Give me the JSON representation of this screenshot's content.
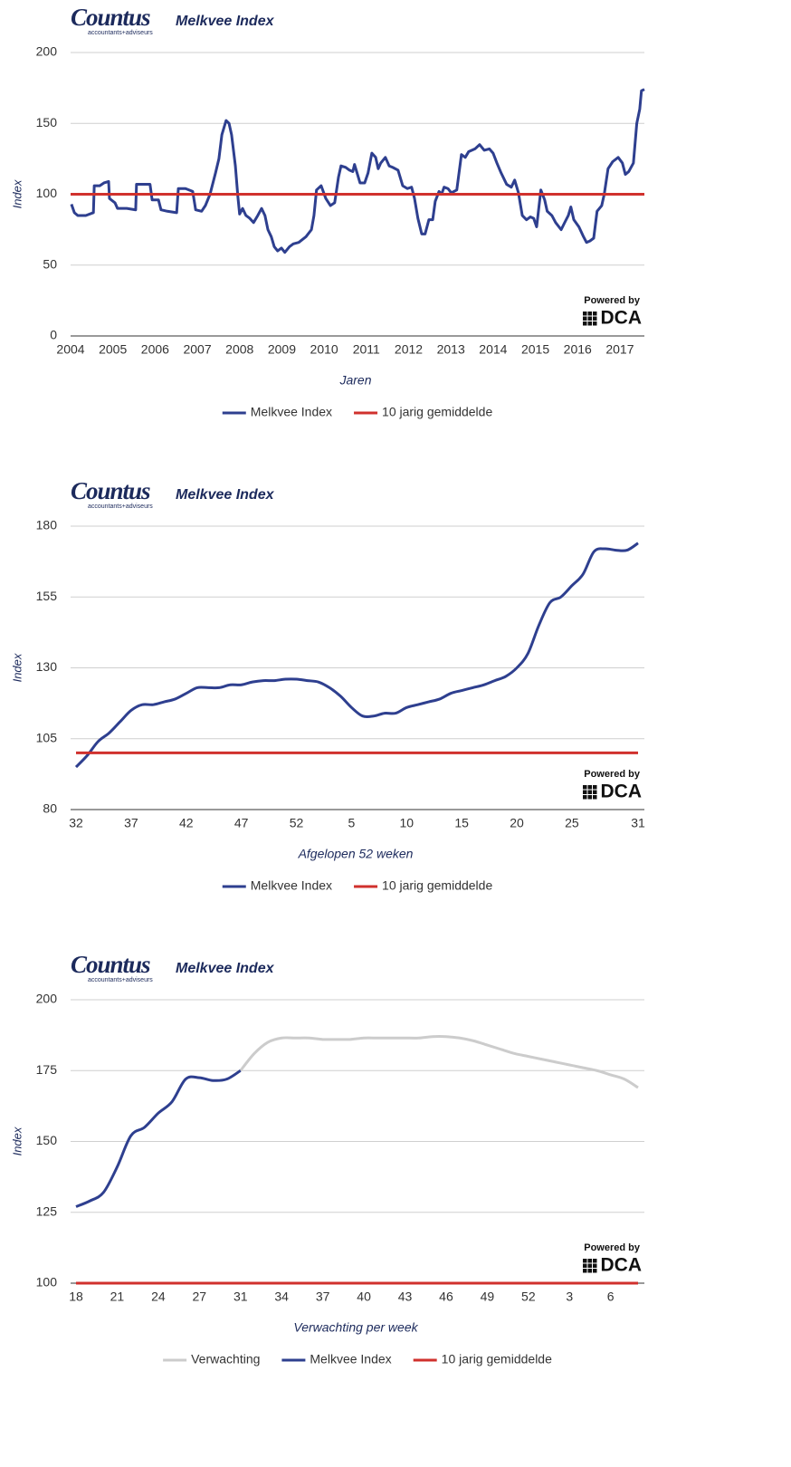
{
  "chart_data": [
    {
      "type": "line",
      "logo": "Countus",
      "logo_subtitle": "accountants+adviseurs",
      "title": "Melkvee Index",
      "badge_caption": "Powered by",
      "badge": "DCA",
      "xlabel": "Jaren",
      "ylabel": "Index",
      "xlim": [
        2004,
        2017.58
      ],
      "xticks": [
        2004,
        2005,
        2006,
        2007,
        2008,
        2009,
        2010,
        2011,
        2012,
        2013,
        2014,
        2015,
        2016,
        2017
      ],
      "ylim": [
        0,
        200
      ],
      "yticks": [
        0,
        50,
        100,
        150,
        200
      ],
      "grid": true,
      "smooth": false,
      "series": [
        {
          "name": "Melkvee Index",
          "color": "#2e3f8f",
          "x": [
            2004.02,
            2004.09,
            2004.17,
            2004.36,
            2004.54,
            2004.56,
            2004.69,
            2004.79,
            2004.9,
            2004.92,
            2005.05,
            2005.11,
            2005.33,
            2005.54,
            2005.56,
            2005.71,
            2005.88,
            2005.93,
            2006.08,
            2006.14,
            2006.29,
            2006.51,
            2006.55,
            2006.72,
            2006.89,
            2006.96,
            2007.1,
            2007.19,
            2007.3,
            2007.43,
            2007.51,
            2007.58,
            2007.68,
            2007.75,
            2007.81,
            2007.9,
            2007.96,
            2008,
            2008.07,
            2008.15,
            2008.24,
            2008.33,
            2008.43,
            2008.52,
            2008.6,
            2008.67,
            2008.75,
            2008.82,
            2008.9,
            2008.99,
            2009.07,
            2009.18,
            2009.27,
            2009.4,
            2009.57,
            2009.7,
            2009.76,
            2009.82,
            2009.93,
            2010.04,
            2010.15,
            2010.25,
            2010.34,
            2010.4,
            2010.51,
            2010.6,
            2010.68,
            2010.72,
            2010.79,
            2010.85,
            2010.96,
            2011.04,
            2011.13,
            2011.22,
            2011.28,
            2011.34,
            2011.45,
            2011.54,
            2011.62,
            2011.75,
            2011.86,
            2011.97,
            2012.07,
            2012.14,
            2012.22,
            2012.31,
            2012.39,
            2012.48,
            2012.57,
            2012.63,
            2012.72,
            2012.78,
            2012.84,
            2012.93,
            2013.01,
            2013.14,
            2013.25,
            2013.34,
            2013.42,
            2013.57,
            2013.68,
            2013.79,
            2013.91,
            2014,
            2014.09,
            2014.19,
            2014.32,
            2014.43,
            2014.51,
            2014.6,
            2014.69,
            2014.79,
            2014.88,
            2014.96,
            2015.03,
            2015.13,
            2015.22,
            2015.28,
            2015.39,
            2015.48,
            2015.61,
            2015.71,
            2015.78,
            2015.84,
            2015.91,
            2016.03,
            2016.14,
            2016.21,
            2016.29,
            2016.38,
            2016.46,
            2016.57,
            2016.63,
            2016.72,
            2016.83,
            2016.96,
            2017.06,
            2017.13,
            2017.21,
            2017.32,
            2017.4,
            2017.47,
            2017.51,
            2017.58
          ],
          "values": [
            93,
            87,
            85,
            85,
            87,
            106,
            106,
            108,
            109,
            97,
            94,
            90,
            90,
            89,
            107,
            107,
            107,
            96,
            96,
            89,
            88,
            87,
            104,
            104,
            102,
            89,
            88,
            92,
            100,
            115,
            125,
            142,
            152,
            150,
            142,
            120,
            98,
            86,
            90,
            85,
            83,
            80,
            85,
            90,
            85,
            75,
            70,
            63,
            60,
            62,
            59,
            63,
            65,
            66,
            70,
            75,
            85,
            103,
            106,
            97,
            92,
            94,
            112,
            120,
            119,
            117,
            116,
            121,
            114,
            108,
            108,
            115,
            129,
            126,
            118,
            122,
            126,
            120,
            119,
            117,
            106,
            104,
            105,
            97,
            83,
            72,
            72,
            82,
            82,
            95,
            102,
            100,
            105,
            104,
            101,
            103,
            128,
            126,
            130,
            132,
            135,
            131,
            132,
            129,
            122,
            115,
            107,
            105,
            110,
            101,
            85,
            82,
            84,
            83,
            77,
            103,
            96,
            88,
            85,
            80,
            75,
            81,
            85,
            91,
            82,
            77,
            70,
            66,
            67,
            69,
            88,
            92,
            100,
            118,
            123,
            126,
            122,
            114,
            116,
            122,
            150,
            160,
            173,
            174
          ]
        },
        {
          "name": "10 jarig gemiddelde",
          "color": "#d0312d",
          "x": [
            2004,
            2017.58
          ],
          "values": [
            100,
            100
          ]
        }
      ]
    },
    {
      "type": "line",
      "logo": "Countus",
      "logo_subtitle": "accountants+adviseurs",
      "title": "Melkvee Index",
      "badge_caption": "Powered by",
      "badge": "DCA",
      "xlabel": "Afgelopen 52 weken",
      "ylabel": "Index",
      "categories": [
        "32",
        null,
        null,
        null,
        null,
        "37",
        null,
        null,
        null,
        null,
        "42",
        null,
        null,
        null,
        null,
        "47",
        null,
        null,
        null,
        null,
        "52",
        null,
        null,
        null,
        null,
        "5",
        null,
        null,
        null,
        null,
        "10",
        null,
        null,
        null,
        null,
        "15",
        null,
        null,
        null,
        null,
        "20",
        null,
        null,
        null,
        null,
        "25",
        null,
        null,
        null,
        null,
        null,
        "31"
      ],
      "ylim": [
        80,
        180
      ],
      "yticks": [
        80,
        105,
        130,
        155,
        180
      ],
      "grid": true,
      "smooth": true,
      "series": [
        {
          "name": "Melkvee Index",
          "color": "#2e3f8f",
          "values": [
            95,
            99,
            104,
            107,
            111,
            115,
            117,
            117,
            118,
            119,
            121,
            123,
            123,
            123,
            124,
            124,
            125,
            125.5,
            125.5,
            126,
            126,
            125.5,
            125,
            123,
            120,
            116,
            113,
            113,
            114,
            114,
            116,
            117,
            118,
            119,
            121,
            122,
            123,
            124,
            125.5,
            127,
            130,
            135,
            145,
            153,
            155,
            159,
            163,
            171,
            172,
            171.5,
            171.5,
            174
          ]
        },
        {
          "name": "10 jarig gemiddelde",
          "color": "#d0312d",
          "values": [
            100,
            100,
            100,
            100,
            100,
            100,
            100,
            100,
            100,
            100,
            100,
            100,
            100,
            100,
            100,
            100,
            100,
            100,
            100,
            100,
            100,
            100,
            100,
            100,
            100,
            100,
            100,
            100,
            100,
            100,
            100,
            100,
            100,
            100,
            100,
            100,
            100,
            100,
            100,
            100,
            100,
            100,
            100,
            100,
            100,
            100,
            100,
            100,
            100,
            100,
            100,
            100
          ]
        }
      ]
    },
    {
      "type": "line",
      "logo": "Countus",
      "logo_subtitle": "accountants+adviseurs",
      "title": "Melkvee Index",
      "badge_caption": "Powered by",
      "badge": "DCA",
      "xlabel": "Verwachting per week",
      "ylabel": "Index",
      "categories": [
        "18",
        null,
        null,
        "21",
        null,
        null,
        "24",
        null,
        null,
        "27",
        null,
        null,
        "31",
        null,
        null,
        "34",
        null,
        null,
        "37",
        null,
        null,
        "40",
        null,
        null,
        "43",
        null,
        null,
        "46",
        null,
        null,
        "49",
        null,
        null,
        "52",
        null,
        null,
        "3",
        null,
        null,
        "6",
        null,
        null
      ],
      "ylim": [
        100,
        200
      ],
      "yticks": [
        100,
        125,
        150,
        175,
        200
      ],
      "grid": true,
      "smooth": true,
      "series": [
        {
          "name": "Verwachting",
          "color": "#cccccc",
          "values": [
            null,
            null,
            null,
            null,
            null,
            null,
            null,
            null,
            null,
            null,
            null,
            null,
            175,
            181,
            185,
            186.5,
            186.5,
            186.5,
            186,
            186,
            186,
            186.5,
            186.5,
            186.5,
            186.5,
            186.5,
            187,
            187,
            186.5,
            185.5,
            184,
            182.5,
            181,
            180,
            179,
            178,
            177,
            176,
            175,
            173.5,
            172,
            169
          ]
        },
        {
          "name": "Melkvee Index",
          "color": "#2e3f8f",
          "values": [
            127,
            129,
            132,
            141,
            152,
            155,
            160,
            164,
            172,
            172.5,
            171.5,
            172,
            175,
            null,
            null,
            null,
            null,
            null,
            null,
            null,
            null,
            null,
            null,
            null,
            null,
            null,
            null,
            null,
            null,
            null,
            null,
            null,
            null,
            null,
            null,
            null,
            null,
            null,
            null,
            null,
            null,
            null
          ]
        },
        {
          "name": "10 jarig gemiddelde",
          "color": "#d0312d",
          "values": [
            100,
            100,
            100,
            100,
            100,
            100,
            100,
            100,
            100,
            100,
            100,
            100,
            100,
            100,
            100,
            100,
            100,
            100,
            100,
            100,
            100,
            100,
            100,
            100,
            100,
            100,
            100,
            100,
            100,
            100,
            100,
            100,
            100,
            100,
            100,
            100,
            100,
            100,
            100,
            100,
            100,
            100
          ]
        }
      ]
    }
  ]
}
